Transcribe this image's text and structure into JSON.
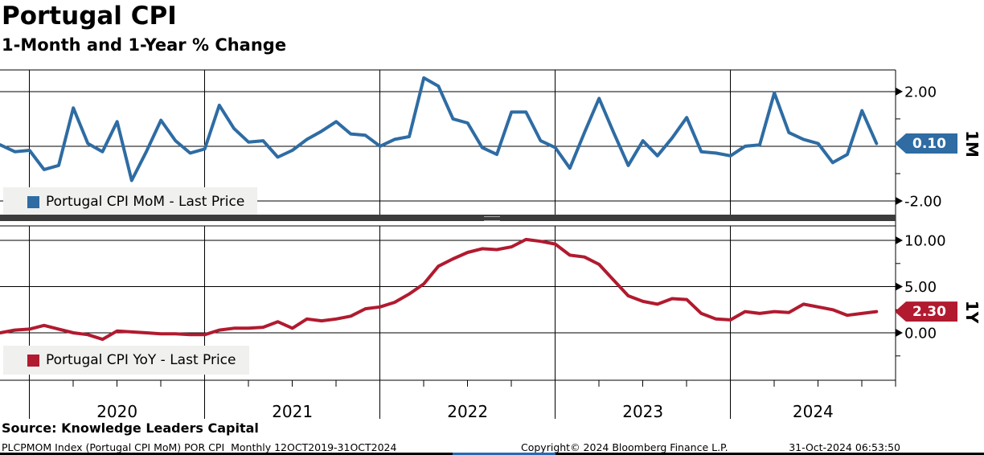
{
  "header": {
    "title": "Portugal CPI",
    "subtitle": "1-Month and 1-Year % Change"
  },
  "colors": {
    "mom_blue": "#2e6ca3",
    "yoy_red": "#b11a2f",
    "legend_bg": "#f0f0ef",
    "grid": "#000000",
    "separator": "#3c3c3c"
  },
  "x_axis": {
    "year_labels": [
      "2020",
      "2021",
      "2022",
      "2023",
      "2024"
    ],
    "year_boundary_month_index": [
      2,
      14,
      26,
      38,
      50
    ],
    "minor_tick_every_months": 3,
    "month_index_zero": "Oct 2019"
  },
  "chart_data": [
    {
      "type": "line",
      "panel": "top",
      "name": "Portugal CPI MoM - Last Price",
      "axis_side_label": "1M",
      "last_price_label": "0.10",
      "last_price": 0.1,
      "color": "#2e6ca3",
      "frequency": "monthly",
      "x_start": "Oct 2019",
      "x_end": "Oct 2024",
      "ylim": [
        -2.5,
        2.79
      ],
      "gridlines": [
        2,
        0,
        -2
      ],
      "yticks": [
        {
          "value": 2,
          "label": "2.00"
        },
        {
          "value": -2,
          "label": "-2.00"
        }
      ],
      "yticks_minor": [
        1,
        -1
      ],
      "values": [
        0.05,
        -0.2,
        -0.15,
        -0.85,
        -0.7,
        1.4,
        0.1,
        -0.2,
        0.9,
        -1.25,
        -0.2,
        0.95,
        0.2,
        -0.25,
        -0.1,
        1.5,
        0.65,
        0.15,
        0.2,
        -0.4,
        -0.15,
        0.25,
        0.55,
        0.9,
        0.45,
        0.4,
        0.0,
        0.25,
        0.35,
        2.5,
        2.2,
        1.0,
        0.85,
        -0.05,
        -0.3,
        1.25,
        1.25,
        0.2,
        -0.05,
        -0.8,
        0.5,
        1.75,
        0.5,
        -0.7,
        0.2,
        -0.35,
        0.3,
        1.05,
        -0.2,
        -0.25,
        -0.35,
        0.0,
        0.05,
        1.95,
        0.5,
        0.25,
        0.1,
        -0.6,
        -0.3,
        1.3,
        0.1
      ]
    },
    {
      "type": "line",
      "panel": "bottom",
      "name": "Portugal CPI YoY - Last Price",
      "axis_side_label": "1Y",
      "last_price_label": "2.30",
      "last_price": 2.3,
      "color": "#b11a2f",
      "frequency": "monthly",
      "x_start": "Oct 2019",
      "x_end": "Oct 2024",
      "ylim": [
        -5.13,
        11.57
      ],
      "gridlines": [
        10,
        5,
        0
      ],
      "yticks": [
        {
          "value": 10,
          "label": "10.00"
        },
        {
          "value": 5,
          "label": "5.00"
        },
        {
          "value": 0,
          "label": "0.00"
        }
      ],
      "yticks_minor": [
        7.5,
        2.5,
        -2.5
      ],
      "values": [
        0.0,
        0.3,
        0.4,
        0.8,
        0.4,
        0.0,
        -0.2,
        -0.7,
        0.2,
        0.1,
        0.0,
        -0.1,
        -0.1,
        -0.2,
        -0.2,
        0.3,
        0.5,
        0.5,
        0.6,
        1.2,
        0.5,
        1.5,
        1.3,
        1.5,
        1.8,
        2.6,
        2.8,
        3.3,
        4.2,
        5.3,
        7.2,
        8.0,
        8.7,
        9.1,
        9.0,
        9.3,
        10.1,
        9.9,
        9.6,
        8.4,
        8.2,
        7.4,
        5.7,
        4.0,
        3.4,
        3.1,
        3.7,
        3.6,
        2.1,
        1.5,
        1.4,
        2.3,
        2.1,
        2.3,
        2.2,
        3.1,
        2.8,
        2.5,
        1.9,
        2.1,
        2.3
      ]
    }
  ],
  "source_line": "Source: Knowledge Leaders Capital",
  "footer": {
    "left": "PLCPMOM Index (Portugal CPI MoM) POR CPI  Monthly 12OCT2019-31OCT2024",
    "center": "Copyright© 2024 Bloomberg Finance L.P.",
    "right": "31-Oct-2024 06:53:50"
  }
}
